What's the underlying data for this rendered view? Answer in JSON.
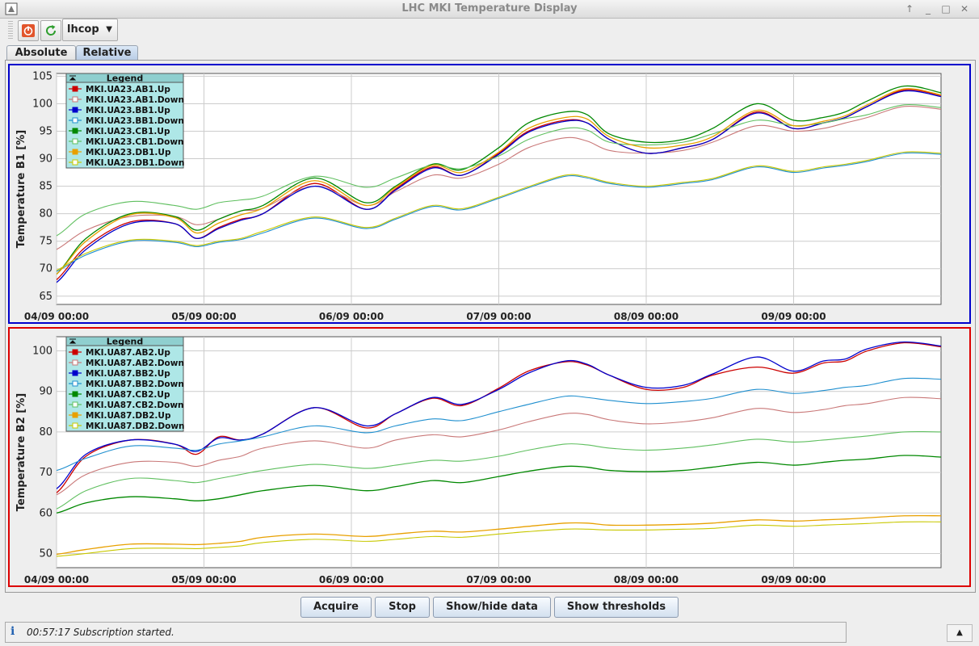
{
  "window": {
    "title": "LHC MKI Temperature Display"
  },
  "toolbar": {
    "combo_value": "lhcop",
    "power_icon": "power-icon",
    "refresh_icon": "refresh-icon"
  },
  "tabs": [
    "Absolute",
    "Relative"
  ],
  "selected_tab": "Relative",
  "buttons": {
    "acquire": "Acquire",
    "stop": "Stop",
    "show_hide": "Show/hide data",
    "thresholds": "Show thresholds"
  },
  "status": {
    "icon": "info-icon",
    "message": "00:57:17 Subscription started."
  },
  "colors": {
    "top_border": "#0000cc",
    "bottom_border": "#dd0000",
    "legend_bg": "#aee7e7"
  },
  "chart_data": [
    {
      "type": "line",
      "ylabel": "Temperature B1  [%]",
      "legend_title": "Legend",
      "ylim": [
        63.5,
        105.5
      ],
      "yticks": [
        65,
        70,
        75,
        80,
        85,
        90,
        95,
        100,
        105
      ],
      "xlim": [
        0,
        6.0
      ],
      "xtick_values": [
        0,
        1,
        2,
        3,
        4,
        5
      ],
      "xtick_labels": [
        "04/09 00:00",
        "05/09 00:00",
        "06/09 00:00",
        "07/09 00:00",
        "08/09 00:00",
        "09/09 00:00"
      ],
      "x": [
        -0.2,
        0,
        0.2,
        0.5,
        0.8,
        0.95,
        1.1,
        1.25,
        1.4,
        1.75,
        2.1,
        2.3,
        2.55,
        2.75,
        3,
        3.2,
        3.45,
        3.6,
        3.75,
        4,
        4.25,
        4.45,
        4.75,
        5,
        5.2,
        5.35,
        5.5,
        5.75,
        6.0
      ],
      "series": [
        {
          "name": "MKI.UA23.AB1.Up",
          "color": "#cc0000",
          "marker": "filled",
          "values": [
            65.3,
            68,
            74,
            78.5,
            78.2,
            75.5,
            77.5,
            79,
            80,
            85.5,
            80.8,
            84.5,
            88.5,
            87,
            91,
            95,
            97,
            96.5,
            93.5,
            91,
            92,
            93.5,
            98.5,
            95.5,
            96.5,
            97.5,
            99.5,
            102.5,
            101.5
          ]
        },
        {
          "name": "MKI.UA23.AB1.Down",
          "color": "#c97878",
          "marker": "hollow",
          "values": [
            71.5,
            73.5,
            77,
            79.5,
            79.5,
            78,
            79,
            80.5,
            81,
            85,
            81.5,
            84,
            87,
            86.5,
            89,
            92,
            93.8,
            93.2,
            91.5,
            91,
            91.5,
            93,
            96,
            95,
            95.5,
            96.5,
            97.5,
            99.5,
            99
          ]
        },
        {
          "name": "MKI.UA23.BB1.Up",
          "color": "#0000cc",
          "marker": "filled",
          "values": [
            65.2,
            67.5,
            73.5,
            78.2,
            78.2,
            75.5,
            77.3,
            78.8,
            80,
            85,
            80.8,
            84.3,
            88.3,
            87,
            90.8,
            94.8,
            96.8,
            96.5,
            93.5,
            91,
            92,
            93.5,
            98.3,
            95.5,
            96.5,
            97.5,
            99.5,
            102.3,
            101.3
          ]
        },
        {
          "name": "MKI.UA23.BB1.Down",
          "color": "#1f8fcf",
          "marker": "hollow",
          "values": [
            68,
            69.5,
            72.5,
            75,
            74.8,
            74,
            74.8,
            75.3,
            76.5,
            79.2,
            77.3,
            79,
            81.3,
            80.7,
            82.8,
            84.7,
            86.8,
            86.5,
            85.5,
            84.8,
            85.5,
            86.2,
            88.5,
            87.5,
            88.3,
            88.8,
            89.5,
            91,
            90.8
          ]
        },
        {
          "name": "MKI.UA23.CB1.Up",
          "color": "#008800",
          "marker": "filled",
          "values": [
            66.3,
            69,
            75.5,
            80,
            79.5,
            77,
            79,
            80.5,
            81.5,
            86.5,
            82,
            85,
            89,
            88,
            92,
            96.5,
            98.5,
            98,
            94.5,
            93,
            93.5,
            95.5,
            100,
            97,
            97.5,
            98.5,
            100.5,
            103.2,
            102
          ]
        },
        {
          "name": "MKI.UA23.CB1.Down",
          "color": "#5fbf5f",
          "marker": "hollow",
          "values": [
            74.5,
            76,
            80,
            82.2,
            81.5,
            80.8,
            82,
            82.5,
            83.2,
            86.8,
            84.8,
            86.5,
            88.8,
            88.2,
            90.5,
            93.5,
            95.5,
            95.2,
            93,
            92.5,
            93,
            94.5,
            97,
            96,
            96.5,
            97.3,
            98,
            99.8,
            99.3
          ]
        },
        {
          "name": "MKI.UA23.DB1.Up",
          "color": "#e8a000",
          "marker": "filled",
          "values": [
            66,
            69,
            75,
            79.8,
            79.3,
            76.5,
            78.3,
            79.8,
            81,
            86,
            81.5,
            84.8,
            88.8,
            87.5,
            91.2,
            95.5,
            97.5,
            97.2,
            94,
            92,
            92.5,
            94,
            98.8,
            96,
            96.8,
            97.8,
            99.8,
            102.7,
            101.6
          ]
        },
        {
          "name": "MKI.UA23.DB1.Down",
          "color": "#c8c800",
          "marker": "hollow",
          "values": [
            68.2,
            69.7,
            72.8,
            75.2,
            75,
            74.2,
            75,
            75.5,
            76.8,
            79.4,
            77.5,
            79.2,
            81.5,
            80.9,
            83,
            84.9,
            87,
            86.7,
            85.7,
            85,
            85.7,
            86.4,
            88.7,
            87.7,
            88.5,
            89,
            89.7,
            91.2,
            91
          ]
        }
      ]
    },
    {
      "type": "line",
      "ylabel": "Temperature B2  [%]",
      "legend_title": "Legend",
      "ylim": [
        46.5,
        103.5
      ],
      "yticks": [
        50,
        60,
        70,
        80,
        90,
        100
      ],
      "xlim": [
        0,
        6.0
      ],
      "xtick_values": [
        0,
        1,
        2,
        3,
        4,
        5
      ],
      "xtick_labels": [
        "04/09 00:00",
        "05/09 00:00",
        "06/09 00:00",
        "07/09 00:00",
        "08/09 00:00",
        "09/09 00:00"
      ],
      "x": [
        -0.2,
        0,
        0.2,
        0.5,
        0.8,
        0.95,
        1.1,
        1.25,
        1.4,
        1.75,
        2.1,
        2.3,
        2.55,
        2.75,
        3,
        3.2,
        3.45,
        3.6,
        3.75,
        4,
        4.25,
        4.45,
        4.75,
        5,
        5.2,
        5.35,
        5.5,
        5.75,
        6.0
      ],
      "series": [
        {
          "name": "MKI.UA87.AB2.Up",
          "color": "#cc0000",
          "marker": "filled",
          "values": [
            63.2,
            65,
            74,
            78,
            77,
            74.5,
            78.8,
            78,
            79.5,
            86,
            81,
            84.5,
            88.3,
            86.5,
            90.8,
            95,
            97.3,
            96.5,
            94,
            90.5,
            91,
            94,
            96,
            94.5,
            97,
            97.5,
            100,
            102,
            101
          ]
        },
        {
          "name": "MKI.UA87.AB2.Down",
          "color": "#c97878",
          "marker": "hollow",
          "values": [
            63.2,
            64.5,
            69.5,
            72.5,
            72.5,
            71.5,
            73,
            74,
            76,
            77.8,
            76,
            78,
            79.3,
            78.8,
            80.5,
            82.5,
            84.5,
            84.3,
            83,
            82,
            82.5,
            83.5,
            85.8,
            84.8,
            85.5,
            86.5,
            87,
            88.5,
            88.2
          ]
        },
        {
          "name": "MKI.UA87.BB2.Up",
          "color": "#0000cc",
          "marker": "filled",
          "values": [
            64.5,
            66,
            74.5,
            78,
            77,
            75.2,
            78.5,
            78,
            79.5,
            86,
            81.5,
            84.5,
            88.5,
            86.8,
            90.5,
            94.5,
            97.5,
            96.7,
            94,
            91,
            91.5,
            94.3,
            98.5,
            95,
            97.5,
            98,
            100.5,
            102.2,
            101.2
          ]
        },
        {
          "name": "MKI.UA87.BB2.Down",
          "color": "#1f8fcf",
          "marker": "hollow",
          "values": [
            70,
            70.5,
            73.5,
            76.5,
            76,
            75.5,
            77,
            77.8,
            78.8,
            81.5,
            79.8,
            81.5,
            83.2,
            82.8,
            85,
            86.8,
            88.8,
            88.5,
            87.8,
            87,
            87.5,
            88.3,
            90.5,
            89.5,
            90.2,
            91,
            91.5,
            93.2,
            93
          ]
        },
        {
          "name": "MKI.UA87.CB2.Up",
          "color": "#008800",
          "marker": "filled",
          "values": [
            59.8,
            60,
            62.5,
            64,
            63.5,
            63,
            63.5,
            64.5,
            65.5,
            66.8,
            65.5,
            66.5,
            68,
            67.5,
            69,
            70.3,
            71.5,
            71.3,
            70.5,
            70.2,
            70.5,
            71.3,
            72.5,
            71.8,
            72.5,
            73,
            73.3,
            74.2,
            73.8
          ]
        },
        {
          "name": "MKI.UA87.CB2.Down",
          "color": "#5fbf5f",
          "marker": "hollow",
          "values": [
            59.2,
            61,
            65.5,
            68.5,
            68,
            67.5,
            68.5,
            69.5,
            70.5,
            72,
            71,
            71.8,
            73,
            72.8,
            74,
            75.5,
            77,
            76.8,
            76,
            75.5,
            76,
            76.8,
            78.2,
            77.5,
            78,
            78.5,
            79,
            80,
            80
          ]
        },
        {
          "name": "MKI.UA87.DB2.Up",
          "color": "#e8a000",
          "marker": "filled",
          "values": [
            49.3,
            49.8,
            51,
            52.3,
            52.3,
            52.2,
            52.5,
            53,
            54,
            54.8,
            54.2,
            54.8,
            55.5,
            55.3,
            56,
            56.7,
            57.5,
            57.5,
            57,
            57,
            57.2,
            57.5,
            58.3,
            58,
            58.3,
            58.5,
            58.8,
            59.3,
            59.3
          ]
        },
        {
          "name": "MKI.UA87.DB2.Down",
          "color": "#c8c800",
          "marker": "hollow",
          "values": [
            49,
            49.3,
            50,
            51.2,
            51.3,
            51.2,
            51.5,
            51.9,
            52.7,
            53.5,
            53,
            53.5,
            54.2,
            54,
            54.8,
            55.4,
            56,
            56,
            55.8,
            55.8,
            56,
            56.2,
            57,
            56.7,
            57,
            57.2,
            57.4,
            57.8,
            57.8
          ]
        }
      ]
    }
  ]
}
